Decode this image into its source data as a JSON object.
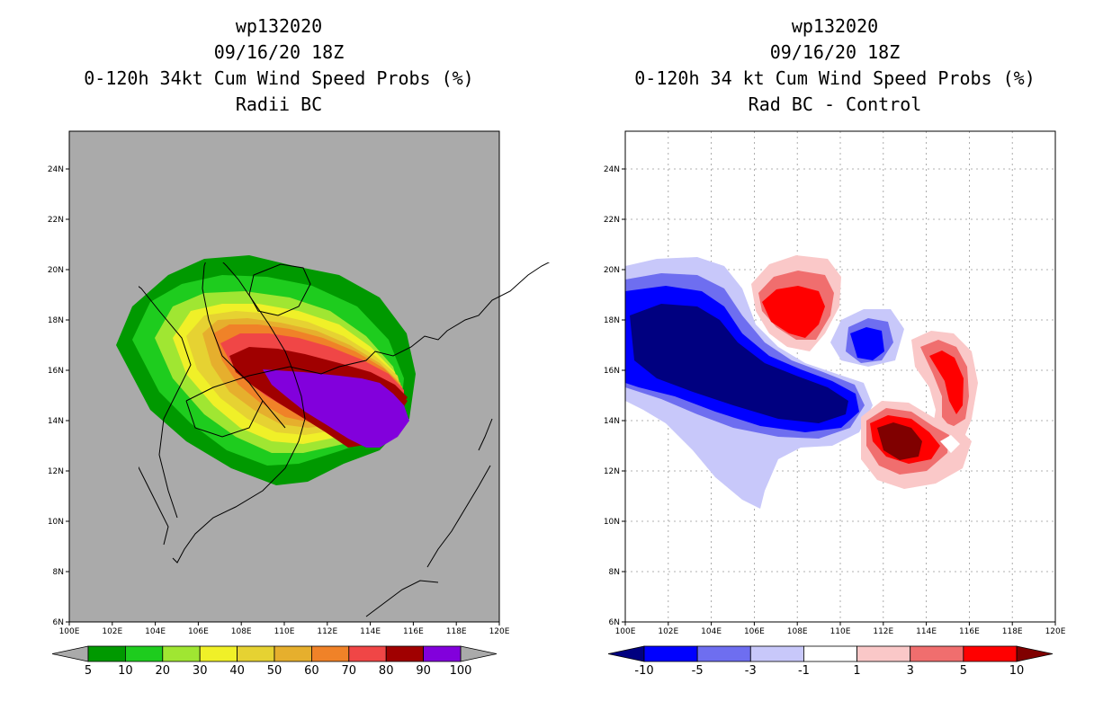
{
  "panels": [
    {
      "id": "left",
      "title_lines": [
        "wp132020",
        "09/16/20 18Z",
        "0-120h 34kt Cum Wind Speed Probs (%)",
        "Radii BC"
      ],
      "background": "#aaaaaa",
      "colorbar": {
        "labels": [
          "5",
          "10",
          "20",
          "30",
          "40",
          "50",
          "60",
          "70",
          "80",
          "90",
          "100"
        ],
        "colors": [
          "#009900",
          "#1ecc1e",
          "#a0e632",
          "#f0f028",
          "#e6d232",
          "#e6af2d",
          "#f08228",
          "#f04646",
          "#a00000",
          "#8200dc"
        ],
        "end_color": "#aaaaaa"
      }
    },
    {
      "id": "right",
      "title_lines": [
        "wp132020",
        "09/16/20 18Z",
        "0-120h 34 kt Cum Wind Speed Probs (%)",
        "Rad BC - Control"
      ],
      "background": "#ffffff",
      "colorbar": {
        "labels": [
          "-10",
          "-5",
          "-3",
          "-1",
          "1",
          "3",
          "5",
          "10"
        ],
        "colors": [
          "#0000ff",
          "#6e6ef0",
          "#c8c8fa",
          "#ffffff",
          "#fac8c8",
          "#f06e6e",
          "#ff0000"
        ],
        "end_colors": [
          "#000080",
          "#800000"
        ]
      }
    }
  ],
  "axes": {
    "x_ticks": [
      "100E",
      "102E",
      "104E",
      "106E",
      "108E",
      "110E",
      "112E",
      "114E",
      "116E",
      "118E",
      "120E"
    ],
    "y_ticks": [
      "6N",
      "8N",
      "10N",
      "12N",
      "14N",
      "16N",
      "18N",
      "20N",
      "22N",
      "24N"
    ],
    "lon_range": [
      100,
      120
    ],
    "lat_range": [
      6,
      25.5
    ]
  }
}
